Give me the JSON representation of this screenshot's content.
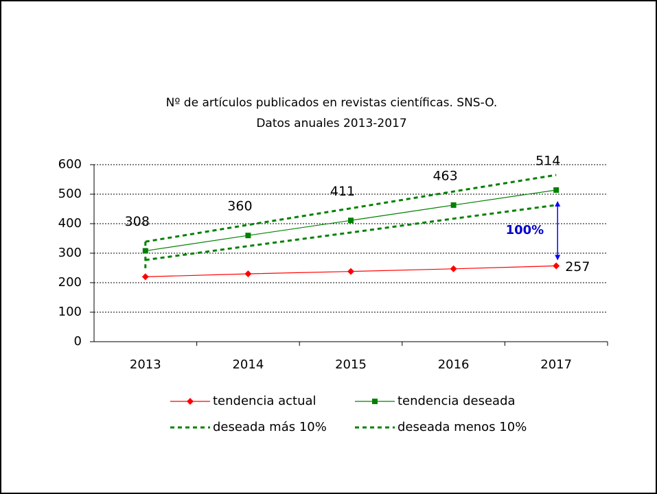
{
  "chart_data": {
    "type": "line",
    "title": "Nº de artículos publicados en revistas científicas.  SNS-O.",
    "subtitle": "Datos anuales 2013-2017",
    "categories": [
      "2013",
      "2014",
      "2015",
      "2016",
      "2017"
    ],
    "series": [
      {
        "name": "tendencia actual",
        "color": "#ff0000",
        "marker": "diamond",
        "dash": false,
        "data_labels": "last",
        "values": [
          220,
          230,
          238,
          247,
          257
        ]
      },
      {
        "name": "tendencia deseada",
        "color": "#008000",
        "marker": "square",
        "dash": false,
        "data_labels": "all",
        "values": [
          308,
          360,
          411,
          463,
          514
        ]
      },
      {
        "name": "deseada más 10%",
        "color": "#008000",
        "marker": "none",
        "dash": true,
        "data_labels": "none",
        "values": [
          339,
          396,
          452,
          509,
          565
        ]
      },
      {
        "name": "deseada menos 10%",
        "color": "#008000",
        "marker": "none",
        "dash": true,
        "data_labels": "none",
        "values": [
          277,
          324,
          370,
          417,
          463
        ]
      }
    ],
    "annotation": "100%",
    "ylim": [
      0,
      600
    ],
    "yticks": [
      0,
      100,
      200,
      300,
      400,
      500,
      600
    ],
    "grid": true,
    "legend": "bottom"
  }
}
